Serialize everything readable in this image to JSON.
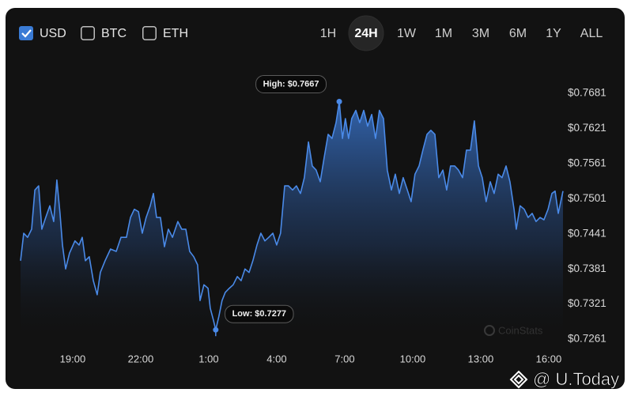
{
  "controls": {
    "currencies": [
      {
        "label": "USD",
        "checked": true
      },
      {
        "label": "BTC",
        "checked": false
      },
      {
        "label": "ETH",
        "checked": false
      }
    ],
    "timeframes": [
      "1H",
      "24H",
      "1W",
      "1M",
      "3M",
      "6M",
      "1Y",
      "ALL"
    ],
    "active_timeframe": "24H"
  },
  "chart_data": {
    "type": "area",
    "x": [
      16.7,
      16.84,
      17.01,
      17.19,
      17.33,
      17.5,
      17.64,
      17.81,
      17.99,
      18.16,
      18.3,
      18.44,
      18.55,
      18.69,
      18.86,
      19.1,
      19.28,
      19.42,
      19.56,
      19.73,
      19.91,
      20.08,
      20.22,
      20.43,
      20.67,
      20.92,
      21.13,
      21.37,
      21.55,
      21.72,
      21.9,
      22.07,
      22.24,
      22.42,
      22.56,
      22.7,
      22.87,
      23.05,
      23.22,
      23.4,
      23.64,
      23.81,
      23.99,
      24.16,
      24.34,
      24.51,
      24.62,
      24.79,
      24.97,
      25.07,
      25.21,
      25.31,
      25.45,
      25.59,
      25.73,
      25.91,
      26.08,
      26.26,
      26.43,
      26.6,
      26.78,
      26.95,
      27.13,
      27.3,
      27.48,
      27.65,
      27.83,
      28.0,
      28.17,
      28.35,
      28.52,
      28.7,
      28.87,
      29.05,
      29.22,
      29.4,
      29.57,
      29.74,
      29.92,
      30.09,
      30.27,
      30.44,
      30.62,
      30.76,
      30.9,
      31.03,
      31.17,
      31.31,
      31.49,
      31.66,
      31.84,
      32.01,
      32.19,
      32.36,
      32.53,
      32.71,
      32.88,
      33.06,
      33.23,
      33.41,
      33.58,
      33.76,
      33.93,
      34.1,
      34.28,
      34.45,
      34.63,
      34.8,
      34.98,
      35.15,
      35.33,
      35.5,
      35.67,
      35.85,
      36.02,
      36.2,
      36.37,
      36.55,
      36.72,
      36.9,
      37.07,
      37.24,
      37.42,
      37.59,
      37.77,
      37.94,
      38.12,
      38.29,
      38.47,
      38.57,
      38.74,
      38.92,
      39.09,
      39.27,
      39.44,
      39.62,
      39.79,
      39.97,
      40.14,
      40.28,
      40.42,
      40.63
    ],
    "series": [
      {
        "name": "USD",
        "color": "#4a8ae8",
        "values": [
          0.7395,
          0.7442,
          0.7435,
          0.7449,
          0.7516,
          0.7523,
          0.7449,
          0.7469,
          0.7489,
          0.7462,
          0.7533,
          0.7476,
          0.7422,
          0.7381,
          0.7408,
          0.7429,
          0.7422,
          0.7435,
          0.7395,
          0.7402,
          0.7361,
          0.7337,
          0.7375,
          0.7395,
          0.7415,
          0.7411,
          0.7435,
          0.7435,
          0.7469,
          0.7483,
          0.7479,
          0.7442,
          0.7469,
          0.7489,
          0.751,
          0.7469,
          0.7469,
          0.7419,
          0.7449,
          0.7435,
          0.7462,
          0.7449,
          0.7449,
          0.7411,
          0.7402,
          0.7388,
          0.7327,
          0.7354,
          0.7348,
          0.7314,
          0.7293,
          0.7277,
          0.73,
          0.7327,
          0.7341,
          0.7348,
          0.7354,
          0.7368,
          0.7361,
          0.7381,
          0.7375,
          0.7395,
          0.7422,
          0.7442,
          0.7429,
          0.7435,
          0.7442,
          0.7422,
          0.7442,
          0.7523,
          0.7523,
          0.7516,
          0.7523,
          0.751,
          0.7537,
          0.7598,
          0.7557,
          0.755,
          0.753,
          0.7571,
          0.7611,
          0.7604,
          0.7631,
          0.7667,
          0.7604,
          0.7638,
          0.7604,
          0.7638,
          0.7652,
          0.7631,
          0.7652,
          0.7625,
          0.7645,
          0.7604,
          0.7652,
          0.7638,
          0.755,
          0.7516,
          0.7543,
          0.751,
          0.7537,
          0.7516,
          0.7496,
          0.7543,
          0.7557,
          0.7584,
          0.7611,
          0.7618,
          0.7611,
          0.7537,
          0.755,
          0.7516,
          0.7557,
          0.7557,
          0.755,
          0.7537,
          0.7584,
          0.7584,
          0.7634,
          0.7557,
          0.7537,
          0.7496,
          0.753,
          0.751,
          0.7543,
          0.7537,
          0.7557,
          0.753,
          0.7483,
          0.7449,
          0.7489,
          0.7483,
          0.7469,
          0.7476,
          0.7462,
          0.7469,
          0.7465,
          0.7483,
          0.751,
          0.7514,
          0.7476,
          0.7514
        ]
      }
    ],
    "xlim": [
      16.7,
      40.63
    ],
    "xticks": [
      {
        "value": 19,
        "label": "19:00"
      },
      {
        "value": 22,
        "label": "22:00"
      },
      {
        "value": 25,
        "label": "1:00"
      },
      {
        "value": 28,
        "label": "4:00"
      },
      {
        "value": 31,
        "label": "7:00"
      },
      {
        "value": 34,
        "label": "10:00"
      },
      {
        "value": 37,
        "label": "13:00"
      },
      {
        "value": 40,
        "label": "16:00"
      }
    ],
    "ylim": [
      0.7257,
      0.7746
    ],
    "yticks": [
      {
        "value": 0.7261,
        "label": "$0.7261"
      },
      {
        "value": 0.7321,
        "label": "$0.7321"
      },
      {
        "value": 0.7381,
        "label": "$0.7381"
      },
      {
        "value": 0.7441,
        "label": "$0.7441"
      },
      {
        "value": 0.7501,
        "label": "$0.7501"
      },
      {
        "value": 0.7561,
        "label": "$0.7561"
      },
      {
        "value": 0.7621,
        "label": "$0.7621"
      },
      {
        "value": 0.7681,
        "label": "$0.7681"
      }
    ],
    "grid": false,
    "annotations": {
      "high": "High: $0.7667",
      "low": "Low: $0.7277"
    },
    "watermarks": [
      "CoinStats",
      "@ U.Today"
    ]
  }
}
